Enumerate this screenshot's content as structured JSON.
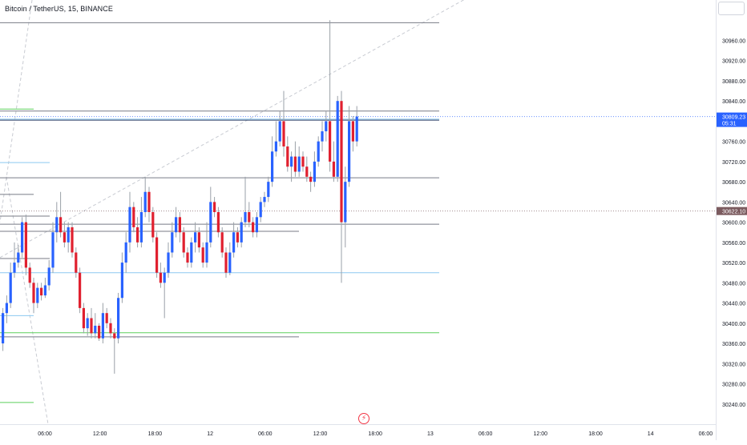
{
  "header": {
    "symbol": "Bitcoin / TetherUS, 15, BINANCE"
  },
  "icons": {
    "alert": "lightning-bolt-icon",
    "axis_menu": "settings-box-icon"
  },
  "colors": {
    "up": "#2962ff",
    "down": "#e0202f",
    "wick": "#9aa0a8",
    "grid": "#d1d4dc"
  },
  "chart_data": {
    "type": "candlestick",
    "title": "Bitcoin / TetherUS, 15, BINANCE",
    "ylim": [
      30200,
      31040
    ],
    "grid": false,
    "y_ticks": [
      "30240.00",
      "30280.00",
      "30320.00",
      "30360.00",
      "30400.00",
      "30440.00",
      "30480.00",
      "30520.00",
      "30560.00",
      "30600.00",
      "30640.00",
      "30680.00",
      "30720.00",
      "30760.00",
      "30800.00",
      "30840.00",
      "30880.00",
      "30920.00",
      "30960.00"
    ],
    "x_ticks": [
      "06:00",
      "12:00",
      "18:00",
      "12",
      "06:00",
      "12:00",
      "18:00",
      "13",
      "06:00",
      "12:00",
      "18:00",
      "14",
      "06:00"
    ],
    "price_labels": [
      {
        "price": 30809.23,
        "text": "30809.23",
        "sub": "05:31",
        "color": "#2962ff"
      },
      {
        "price": 30622.1,
        "text": "30622.10",
        "sub": "",
        "color": "#7b5b5f"
      }
    ],
    "levels": [
      {
        "price": 30995,
        "x_end": 548,
        "color": "#787b86"
      },
      {
        "price": 30820,
        "x_end": 548,
        "color": "#787b86"
      },
      {
        "price": 30804,
        "x_end": 548,
        "color": "#8dc9f0"
      },
      {
        "price": 30802,
        "x_end": 548,
        "color": "#2c3e66"
      },
      {
        "price": 30688,
        "x_end": 548,
        "color": "#787b86"
      },
      {
        "price": 30596,
        "x_end": 548,
        "color": "#787b86"
      },
      {
        "price": 30582,
        "x_end": 373,
        "color": "#787b86"
      },
      {
        "price": 30500,
        "x_end": 548,
        "color": "#8dc9f0"
      },
      {
        "price": 30381,
        "x_end": 548,
        "color": "#5ccf5c"
      },
      {
        "price": 30373,
        "x_end": 373,
        "color": "#787b86"
      },
      {
        "price": 30824,
        "x_end": 42,
        "color": "#5ccf5c"
      },
      {
        "price": 30718,
        "x_end": 62,
        "color": "#8dc9f0"
      },
      {
        "price": 30655,
        "x_end": 42,
        "color": "#787b86"
      },
      {
        "price": 30612,
        "x_end": 62,
        "color": "#787b86"
      },
      {
        "price": 30528,
        "x_end": 62,
        "color": "#787b86"
      },
      {
        "price": 30415,
        "x_end": 42,
        "color": "#8dc9f0"
      },
      {
        "price": 30243,
        "x_end": 42,
        "color": "#5ccf5c"
      }
    ],
    "trendlines": [
      {
        "p1": [
          0,
          30530
        ],
        "p2": [
          652,
          31105
        ]
      },
      {
        "p1": [
          40,
          31040
        ],
        "p2": [
          0,
          30600
        ]
      },
      {
        "p1": [
          8,
          30690
        ],
        "p2": [
          60,
          30200
        ]
      }
    ],
    "candles": [
      [
        30360,
        30420,
        30345,
        30430
      ],
      [
        30420,
        30440,
        30400,
        30455
      ],
      [
        30440,
        30500,
        30430,
        30520
      ],
      [
        30500,
        30520,
        30490,
        30560
      ],
      [
        30520,
        30540,
        30510,
        30555
      ],
      [
        30540,
        30600,
        30530,
        30610
      ],
      [
        30600,
        30510,
        30495,
        30615
      ],
      [
        30510,
        30480,
        30470,
        30520
      ],
      [
        30480,
        30440,
        30420,
        30490
      ],
      [
        30440,
        30470,
        30430,
        30480
      ],
      [
        30470,
        30455,
        30445,
        30480
      ],
      [
        30455,
        30475,
        30450,
        30490
      ],
      [
        30475,
        30510,
        30465,
        30525
      ],
      [
        30510,
        30580,
        30500,
        30600
      ],
      [
        30580,
        30610,
        30560,
        30640
      ],
      [
        30610,
        30580,
        30570,
        30660
      ],
      [
        30580,
        30560,
        30550,
        30600
      ],
      [
        30560,
        30590,
        30540,
        30600
      ],
      [
        30590,
        30540,
        30530,
        30600
      ],
      [
        30540,
        30500,
        30490,
        30550
      ],
      [
        30500,
        30430,
        30420,
        30510
      ],
      [
        30430,
        30390,
        30380,
        30440
      ],
      [
        30390,
        30410,
        30375,
        30420
      ],
      [
        30410,
        30380,
        30370,
        30430
      ],
      [
        30380,
        30395,
        30370,
        30420
      ],
      [
        30395,
        30370,
        30365,
        30400
      ],
      [
        30370,
        30420,
        30360,
        30440
      ],
      [
        30420,
        30400,
        30390,
        30430
      ],
      [
        30400,
        30380,
        30370,
        30410
      ],
      [
        30380,
        30370,
        30300,
        30390
      ],
      [
        30370,
        30450,
        30360,
        30460
      ],
      [
        30450,
        30520,
        30440,
        30540
      ],
      [
        30520,
        30560,
        30500,
        30580
      ],
      [
        30560,
        30630,
        30540,
        30660
      ],
      [
        30630,
        30590,
        30580,
        30640
      ],
      [
        30590,
        30560,
        30550,
        30610
      ],
      [
        30560,
        30620,
        30550,
        30650
      ],
      [
        30620,
        30660,
        30610,
        30690
      ],
      [
        30660,
        30620,
        30600,
        30670
      ],
      [
        30620,
        30570,
        30560,
        30630
      ],
      [
        30570,
        30500,
        30490,
        30580
      ],
      [
        30500,
        30480,
        30470,
        30520
      ],
      [
        30480,
        30500,
        30410,
        30510
      ],
      [
        30500,
        30540,
        30490,
        30560
      ],
      [
        30540,
        30580,
        30530,
        30600
      ],
      [
        30580,
        30610,
        30570,
        30630
      ],
      [
        30610,
        30580,
        30560,
        30620
      ],
      [
        30580,
        30540,
        30530,
        30590
      ],
      [
        30540,
        30520,
        30510,
        30550
      ],
      [
        30520,
        30560,
        30510,
        30570
      ],
      [
        30560,
        30580,
        30540,
        30600
      ],
      [
        30580,
        30550,
        30540,
        30590
      ],
      [
        30550,
        30520,
        30510,
        30560
      ],
      [
        30520,
        30560,
        30510,
        30600
      ],
      [
        30560,
        30640,
        30550,
        30670
      ],
      [
        30640,
        30620,
        30610,
        30650
      ],
      [
        30620,
        30580,
        30570,
        30630
      ],
      [
        30580,
        30540,
        30530,
        30590
      ],
      [
        30540,
        30500,
        30490,
        30550
      ],
      [
        30500,
        30540,
        30495,
        30560
      ],
      [
        30540,
        30580,
        30530,
        30600
      ],
      [
        30580,
        30560,
        30550,
        30590
      ],
      [
        30560,
        30600,
        30550,
        30610
      ],
      [
        30600,
        30620,
        30590,
        30690
      ],
      [
        30620,
        30600,
        30590,
        30640
      ],
      [
        30600,
        30580,
        30570,
        30610
      ],
      [
        30580,
        30610,
        30570,
        30620
      ],
      [
        30610,
        30640,
        30600,
        30650
      ],
      [
        30640,
        30650,
        30630,
        30660
      ],
      [
        30650,
        30680,
        30640,
        30690
      ],
      [
        30680,
        30740,
        30670,
        30770
      ],
      [
        30740,
        30760,
        30730,
        30800
      ],
      [
        30760,
        30800,
        30750,
        30820
      ],
      [
        30800,
        30750,
        30730,
        30860
      ],
      [
        30750,
        30710,
        30700,
        30770
      ],
      [
        30710,
        30730,
        30680,
        30740
      ],
      [
        30730,
        30700,
        30690,
        30760
      ],
      [
        30700,
        30730,
        30690,
        30750
      ],
      [
        30730,
        30710,
        30700,
        30740
      ],
      [
        30710,
        30690,
        30680,
        30730
      ],
      [
        30690,
        30680,
        30660,
        30700
      ],
      [
        30680,
        30720,
        30670,
        30740
      ],
      [
        30720,
        30760,
        30710,
        30770
      ],
      [
        30760,
        30780,
        30740,
        30800
      ],
      [
        30780,
        30800,
        30760,
        30820
      ],
      [
        30800,
        30720,
        30700,
        31000
      ],
      [
        30720,
        30690,
        30680,
        30760
      ],
      [
        30690,
        30840,
        30680,
        30850
      ],
      [
        30840,
        30600,
        30480,
        30860
      ],
      [
        30600,
        30680,
        30550,
        30710
      ],
      [
        30680,
        30800,
        30670,
        30830
      ],
      [
        30800,
        30760,
        30740,
        30810
      ],
      [
        30760,
        30809.23,
        30750,
        30830
      ]
    ]
  }
}
